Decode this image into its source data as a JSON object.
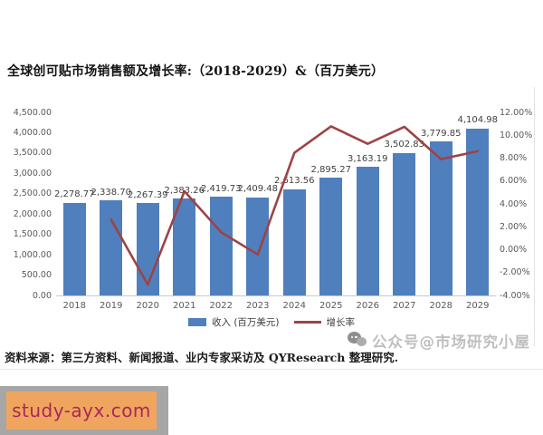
{
  "page": {
    "title": "全球创可贴市场销售额及增长率:（2018-2029）&（百万美元）",
    "source_note": "资料来源：第三方资料、新闻报道、业内专家采访及 QYResearch 整理研究.",
    "watermark": {
      "icon": "wechat-icon",
      "text": "公众号@市场研究小屋"
    },
    "badge": {
      "text": "study-ayx.com",
      "bg_color": "#f0a55f",
      "text_color": "#a8285a",
      "panel_color": "#a6a6a6"
    }
  },
  "chart_data": {
    "type": "bar",
    "combo": "bar+line",
    "title": "全球创可贴市场销售额及增长率:（2018-2029）&（百万美元）",
    "categories": [
      "2018",
      "2019",
      "2020",
      "2021",
      "2022",
      "2023",
      "2024",
      "2025",
      "2026",
      "2027",
      "2028",
      "2029"
    ],
    "series": [
      {
        "name": "收入 (百万美元)",
        "type": "bar",
        "color": "#4f7fbd",
        "values": [
          2278.77,
          2338.7,
          2267.39,
          2383.26,
          2419.73,
          2409.48,
          2613.56,
          2895.27,
          3163.19,
          3502.83,
          3779.85,
          4104.98
        ],
        "labels": [
          "2,278.77",
          "2,338.70",
          "2,267.39",
          "2,383.26",
          "2,419.73",
          "2,409.48",
          "2,613.56",
          "2,895.27",
          "3,163.19",
          "3,502.83",
          "3,779.85",
          "4,104.98"
        ]
      },
      {
        "name": "增长率",
        "type": "line",
        "color": "#9d4345",
        "values_pct": [
          null,
          2.63,
          -3.05,
          5.11,
          1.53,
          -0.42,
          8.47,
          10.78,
          9.25,
          10.74,
          7.91,
          8.6
        ]
      }
    ],
    "y_axis_left": {
      "min": 0,
      "max": 4500,
      "step": 500,
      "ticks": [
        "4,500.00",
        "4,000.00",
        "3,500.00",
        "3,000.00",
        "2,500.00",
        "2,000.00",
        "1,500.00",
        "1,000.00",
        "500.00",
        "0.00"
      ]
    },
    "y_axis_right": {
      "min": -4,
      "max": 12,
      "step": 2,
      "ticks": [
        "12.00%",
        "10.00%",
        "8.00%",
        "6.00%",
        "4.00%",
        "2.00%",
        "0.00%",
        "-2.00%",
        "-4.00%"
      ]
    },
    "legend_position": "bottom",
    "gridlines": false,
    "xlabel": "",
    "ylabel_left": "收入 (百万美元)",
    "ylabel_right": "增长率"
  }
}
